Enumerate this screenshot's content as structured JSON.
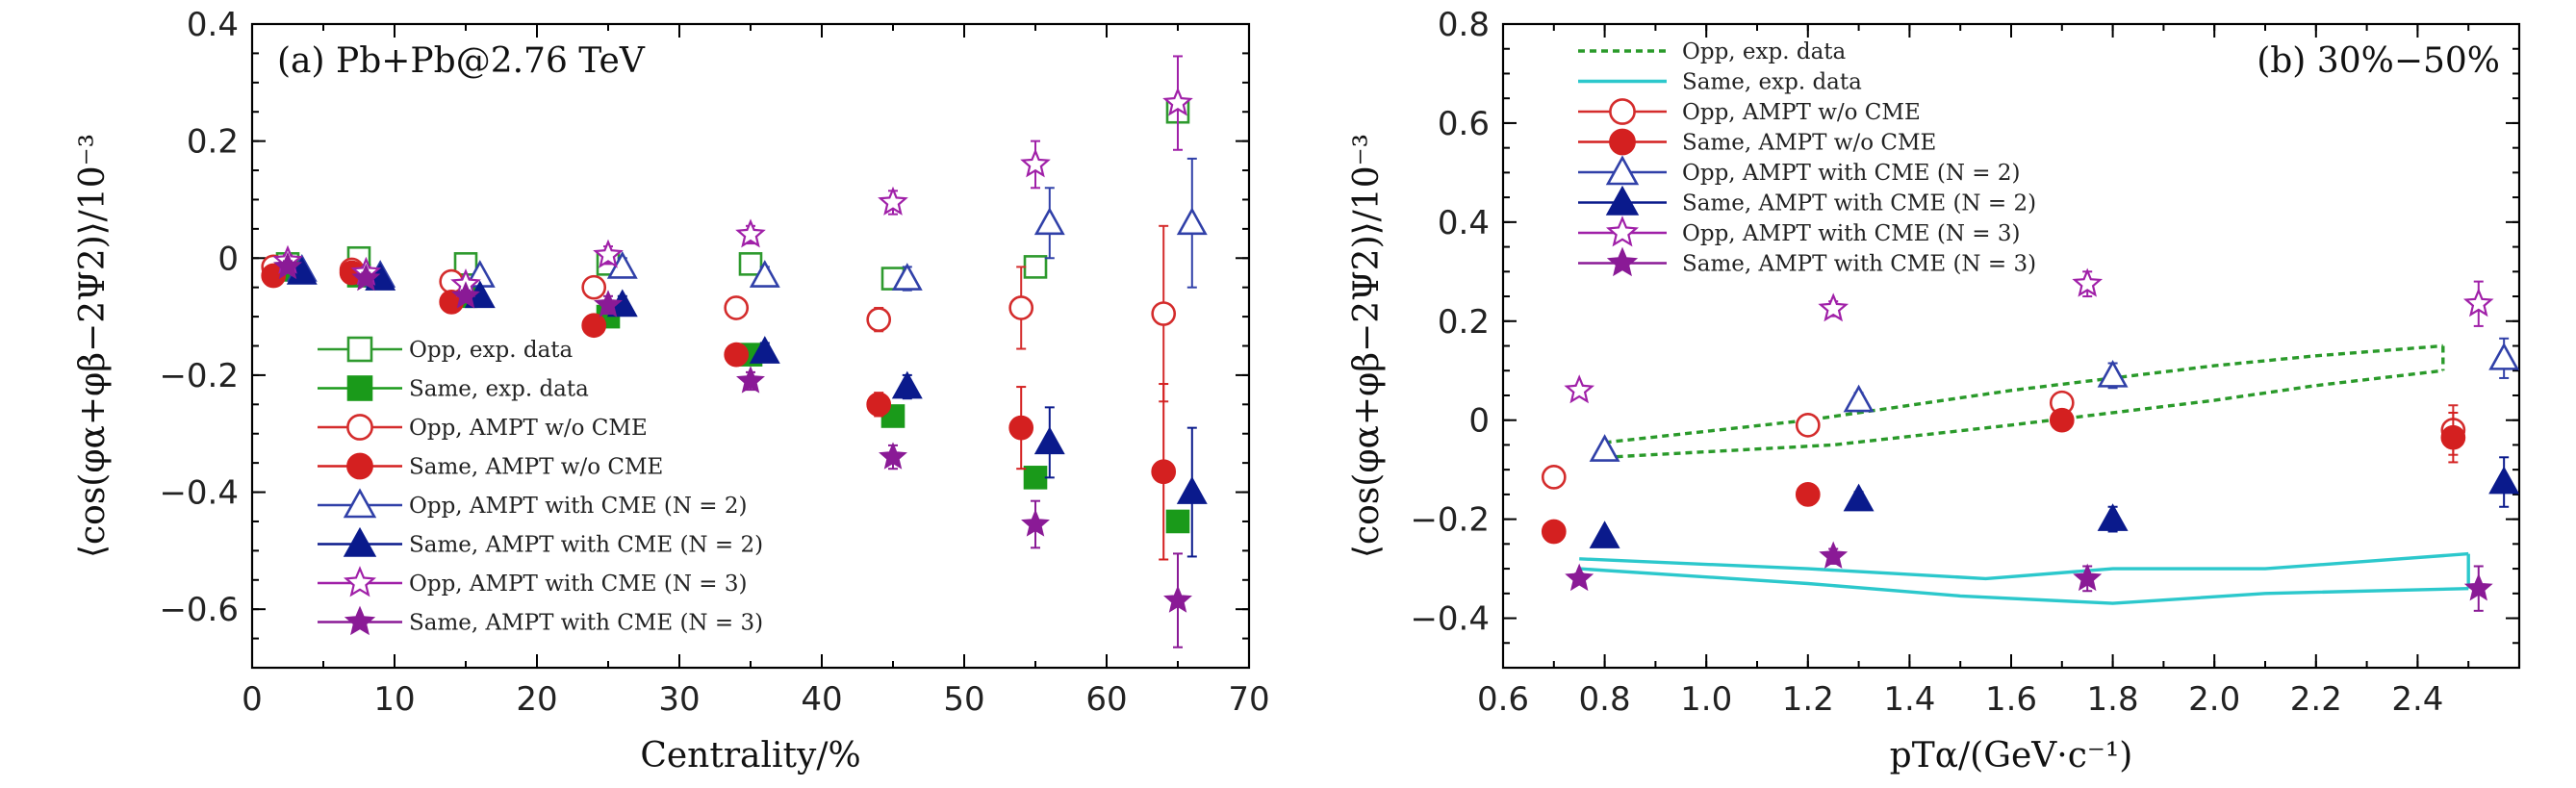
{
  "chart_data": [
    {
      "panel": "a",
      "type": "scatter",
      "title": "(a) Pb+Pb@2.76 TeV",
      "xlabel": "Centrality/%",
      "ylabel": "⟨cos(φα+φβ−2Ψ2)⟩/10⁻³",
      "xlim": [
        0,
        70
      ],
      "ylim": [
        -0.7,
        0.4
      ],
      "xticks": [
        "0",
        "10",
        "20",
        "30",
        "40",
        "50",
        "60",
        "70"
      ],
      "yticks": [
        "0.4",
        "0.2",
        "0",
        "−0.2",
        "−0.4",
        "−0.6"
      ],
      "legend_position": "lower-left",
      "series": [
        {
          "name": "Opp, exp. data",
          "marker": "square",
          "filled": false,
          "color": "#2e9a2e",
          "points": [
            {
              "x": 2.5,
              "y": -0.01
            },
            {
              "x": 7.5,
              "y": 0.0
            },
            {
              "x": 15,
              "y": -0.01
            },
            {
              "x": 25,
              "y": -0.01
            },
            {
              "x": 35,
              "y": -0.01
            },
            {
              "x": 45,
              "y": -0.035
            },
            {
              "x": 55,
              "y": -0.015
            },
            {
              "x": 65,
              "y": 0.25
            }
          ]
        },
        {
          "name": "Same, exp. data",
          "marker": "square",
          "filled": true,
          "color": "#1a9a1a",
          "points": [
            {
              "x": 2.5,
              "y": -0.02
            },
            {
              "x": 7.5,
              "y": -0.03
            },
            {
              "x": 15,
              "y": -0.065
            },
            {
              "x": 25,
              "y": -0.1
            },
            {
              "x": 35,
              "y": -0.165
            },
            {
              "x": 45,
              "y": -0.27
            },
            {
              "x": 55,
              "y": -0.375
            },
            {
              "x": 65,
              "y": -0.45
            }
          ]
        },
        {
          "name": "Opp, AMPT w/o CME",
          "marker": "circle",
          "filled": false,
          "color": "#d42c2c",
          "points": [
            {
              "x": 1.5,
              "y": -0.015,
              "err": 0.01
            },
            {
              "x": 7,
              "y": -0.02,
              "err": 0.01
            },
            {
              "x": 14,
              "y": -0.04,
              "err": 0.01
            },
            {
              "x": 24,
              "y": -0.05,
              "err": 0.015
            },
            {
              "x": 34,
              "y": -0.085,
              "err": 0.015
            },
            {
              "x": 44,
              "y": -0.105,
              "err": 0.02
            },
            {
              "x": 54,
              "y": -0.085,
              "err": 0.07
            },
            {
              "x": 64,
              "y": -0.095,
              "err": 0.15
            }
          ]
        },
        {
          "name": "Same, AMPT w/o CME",
          "marker": "circle",
          "filled": true,
          "color": "#d42020",
          "points": [
            {
              "x": 1.5,
              "y": -0.03,
              "err": 0.01
            },
            {
              "x": 7,
              "y": -0.025,
              "err": 0.01
            },
            {
              "x": 14,
              "y": -0.075,
              "err": 0.01
            },
            {
              "x": 24,
              "y": -0.115,
              "err": 0.015
            },
            {
              "x": 34,
              "y": -0.165,
              "err": 0.015
            },
            {
              "x": 44,
              "y": -0.25,
              "err": 0.02
            },
            {
              "x": 54,
              "y": -0.29,
              "err": 0.07
            },
            {
              "x": 64,
              "y": -0.365,
              "err": 0.15
            }
          ]
        },
        {
          "name": "Opp, AMPT with CME (N = 2)",
          "marker": "triangle",
          "filled": false,
          "color": "#3040a8",
          "points": [
            {
              "x": 3.5,
              "y": -0.02,
              "err": 0.01
            },
            {
              "x": 9,
              "y": -0.03,
              "err": 0.01
            },
            {
              "x": 16,
              "y": -0.03,
              "err": 0.01
            },
            {
              "x": 26,
              "y": -0.015,
              "err": 0.015
            },
            {
              "x": 36,
              "y": -0.03,
              "err": 0.015
            },
            {
              "x": 46,
              "y": -0.035,
              "err": 0.02
            },
            {
              "x": 56,
              "y": 0.06,
              "err": 0.06
            },
            {
              "x": 66,
              "y": 0.06,
              "err": 0.11
            }
          ]
        },
        {
          "name": "Same, AMPT with CME (N = 2)",
          "marker": "triangle",
          "filled": true,
          "color": "#0a1a8c",
          "points": [
            {
              "x": 3.5,
              "y": -0.025,
              "err": 0.01
            },
            {
              "x": 9,
              "y": -0.035,
              "err": 0.01
            },
            {
              "x": 16,
              "y": -0.065,
              "err": 0.01
            },
            {
              "x": 26,
              "y": -0.08,
              "err": 0.015
            },
            {
              "x": 36,
              "y": -0.16,
              "err": 0.015
            },
            {
              "x": 46,
              "y": -0.22,
              "err": 0.02
            },
            {
              "x": 56,
              "y": -0.315,
              "err": 0.06
            },
            {
              "x": 66,
              "y": -0.4,
              "err": 0.11
            }
          ]
        },
        {
          "name": "Opp, AMPT with CME (N = 3)",
          "marker": "star",
          "filled": false,
          "color": "#a020a8",
          "points": [
            {
              "x": 2.5,
              "y": -0.005,
              "err": 0.01
            },
            {
              "x": 8,
              "y": -0.025,
              "err": 0.01
            },
            {
              "x": 15,
              "y": -0.045,
              "err": 0.01
            },
            {
              "x": 25,
              "y": 0.005,
              "err": 0.015
            },
            {
              "x": 35,
              "y": 0.04,
              "err": 0.015
            },
            {
              "x": 45,
              "y": 0.095,
              "err": 0.02
            },
            {
              "x": 55,
              "y": 0.16,
              "err": 0.04
            },
            {
              "x": 65,
              "y": 0.265,
              "err": 0.08
            }
          ]
        },
        {
          "name": "Same, AMPT with CME (N = 3)",
          "marker": "star",
          "filled": true,
          "color": "#8a1a96",
          "points": [
            {
              "x": 2.5,
              "y": -0.015,
              "err": 0.01
            },
            {
              "x": 8,
              "y": -0.035,
              "err": 0.01
            },
            {
              "x": 15,
              "y": -0.065,
              "err": 0.01
            },
            {
              "x": 25,
              "y": -0.08,
              "err": 0.015
            },
            {
              "x": 35,
              "y": -0.21,
              "err": 0.015
            },
            {
              "x": 45,
              "y": -0.34,
              "err": 0.02
            },
            {
              "x": 55,
              "y": -0.455,
              "err": 0.04
            },
            {
              "x": 65,
              "y": -0.585,
              "err": 0.08
            }
          ]
        }
      ]
    },
    {
      "panel": "b",
      "type": "scatter",
      "title": "(b) 30%−50%",
      "xlabel": "pTα/(GeV·c⁻¹)",
      "ylabel": "⟨cos(φα+φβ−2Ψ2)⟩/10⁻³",
      "xlim": [
        0.6,
        2.6
      ],
      "ylim": [
        -0.5,
        0.8
      ],
      "xticks": [
        "0.6",
        "0.8",
        "1.0",
        "1.2",
        "1.4",
        "1.6",
        "1.8",
        "2.0",
        "2.2",
        "2.4"
      ],
      "yticks": [
        "0.8",
        "0.6",
        "0.4",
        "0.2",
        "0",
        "−0.2",
        "−0.4"
      ],
      "legend_position": "top-left",
      "series": [
        {
          "name": "Opp, exp. data",
          "style": "dotted-band",
          "color": "#2a9a2a",
          "upper": [
            {
              "x": 0.8,
              "y": -0.045
            },
            {
              "x": 1.2,
              "y": 0.0
            },
            {
              "x": 1.6,
              "y": 0.06
            },
            {
              "x": 2.0,
              "y": 0.11
            },
            {
              "x": 2.2,
              "y": 0.13
            },
            {
              "x": 2.45,
              "y": 0.15
            }
          ],
          "lower": [
            {
              "x": 0.8,
              "y": -0.075
            },
            {
              "x": 1.25,
              "y": -0.05
            },
            {
              "x": 1.6,
              "y": -0.01
            },
            {
              "x": 2.0,
              "y": 0.04
            },
            {
              "x": 2.2,
              "y": 0.07
            },
            {
              "x": 2.45,
              "y": 0.1
            }
          ]
        },
        {
          "name": "Same, exp. data",
          "style": "solid-band",
          "color": "#2cc8cc",
          "upper": [
            {
              "x": 0.75,
              "y": -0.28
            },
            {
              "x": 1.2,
              "y": -0.3
            },
            {
              "x": 1.55,
              "y": -0.32
            },
            {
              "x": 1.8,
              "y": -0.3
            },
            {
              "x": 2.1,
              "y": -0.3
            },
            {
              "x": 2.5,
              "y": -0.27
            }
          ],
          "lower": [
            {
              "x": 0.75,
              "y": -0.3
            },
            {
              "x": 1.2,
              "y": -0.33
            },
            {
              "x": 1.5,
              "y": -0.355
            },
            {
              "x": 1.8,
              "y": -0.37
            },
            {
              "x": 2.1,
              "y": -0.35
            },
            {
              "x": 2.5,
              "y": -0.34
            }
          ]
        },
        {
          "name": "Opp, AMPT w/o CME",
          "marker": "circle",
          "filled": false,
          "color": "#d42c2c",
          "points": [
            {
              "x": 0.7,
              "y": -0.115,
              "err": 0.01
            },
            {
              "x": 1.2,
              "y": -0.01,
              "err": 0.015
            },
            {
              "x": 1.7,
              "y": 0.035,
              "err": 0.02
            },
            {
              "x": 2.47,
              "y": -0.02,
              "err": 0.05
            }
          ]
        },
        {
          "name": "Same, AMPT w/o CME",
          "marker": "circle",
          "filled": true,
          "color": "#d42020",
          "points": [
            {
              "x": 0.7,
              "y": -0.225,
              "err": 0.01
            },
            {
              "x": 1.2,
              "y": -0.15,
              "err": 0.015
            },
            {
              "x": 1.7,
              "y": 0.0,
              "err": 0.02
            },
            {
              "x": 2.47,
              "y": -0.035,
              "err": 0.05
            }
          ]
        },
        {
          "name": "Opp, AMPT with CME (N = 2)",
          "marker": "triangle",
          "filled": false,
          "color": "#3040a8",
          "points": [
            {
              "x": 0.8,
              "y": -0.06,
              "err": 0.01
            },
            {
              "x": 1.3,
              "y": 0.04,
              "err": 0.015
            },
            {
              "x": 1.8,
              "y": 0.09,
              "err": 0.025
            },
            {
              "x": 2.57,
              "y": 0.125,
              "err": 0.04
            }
          ]
        },
        {
          "name": "Same, AMPT with CME (N = 2)",
          "marker": "triangle",
          "filled": true,
          "color": "#0a1a8c",
          "points": [
            {
              "x": 0.8,
              "y": -0.235,
              "err": 0.01
            },
            {
              "x": 1.3,
              "y": -0.16,
              "err": 0.015
            },
            {
              "x": 1.8,
              "y": -0.2,
              "err": 0.025
            },
            {
              "x": 2.57,
              "y": -0.125,
              "err": 0.05
            }
          ]
        },
        {
          "name": "Opp, AMPT with CME (N = 3)",
          "marker": "star",
          "filled": false,
          "color": "#a020a8",
          "points": [
            {
              "x": 0.75,
              "y": 0.06,
              "err": 0.01
            },
            {
              "x": 1.25,
              "y": 0.225,
              "err": 0.015
            },
            {
              "x": 1.75,
              "y": 0.275,
              "err": 0.025
            },
            {
              "x": 2.52,
              "y": 0.235,
              "err": 0.045
            }
          ]
        },
        {
          "name": "Same, AMPT with CME (N = 3)",
          "marker": "star",
          "filled": true,
          "color": "#8a1a96",
          "points": [
            {
              "x": 0.75,
              "y": -0.32,
              "err": 0.01
            },
            {
              "x": 1.25,
              "y": -0.275,
              "err": 0.015
            },
            {
              "x": 1.75,
              "y": -0.32,
              "err": 0.025
            },
            {
              "x": 2.52,
              "y": -0.34,
              "err": 0.045
            }
          ]
        }
      ]
    }
  ]
}
